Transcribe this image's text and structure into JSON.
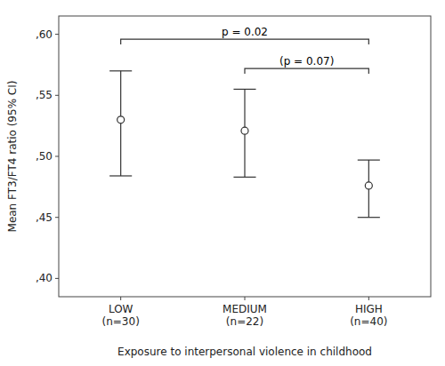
{
  "chart_data": {
    "type": "errorbar",
    "categories": [
      "LOW\n(n=30)",
      "MEDIUM\n(n=22)",
      "HIGH\n(n=40)"
    ],
    "values": [
      0.53,
      0.521,
      0.476
    ],
    "ci_upper": [
      0.57,
      0.555,
      0.497
    ],
    "ci_lower": [
      0.484,
      0.483,
      0.45
    ],
    "ylim": [
      0.385,
      0.615
    ],
    "yticks": [
      {
        "value": 0.4,
        "label": ",40"
      },
      {
        "value": 0.45,
        "label": ",45"
      },
      {
        "value": 0.5,
        "label": ",50"
      },
      {
        "value": 0.55,
        "label": ",55"
      },
      {
        "value": 0.6,
        "label": ",60"
      }
    ],
    "ylabel": "Mean FT3/FT4 ratio (95% CI)",
    "xlabel": "Exposure to interpersonal violence in childhood",
    "annotations": [
      {
        "text": "p = 0.02",
        "y": 0.596,
        "from": 0,
        "to": 2
      },
      {
        "text": "(p = 0.07)",
        "y": 0.572,
        "from": 1,
        "to": 2
      }
    ],
    "color": "#333333",
    "marker": "circle",
    "grid": false
  }
}
